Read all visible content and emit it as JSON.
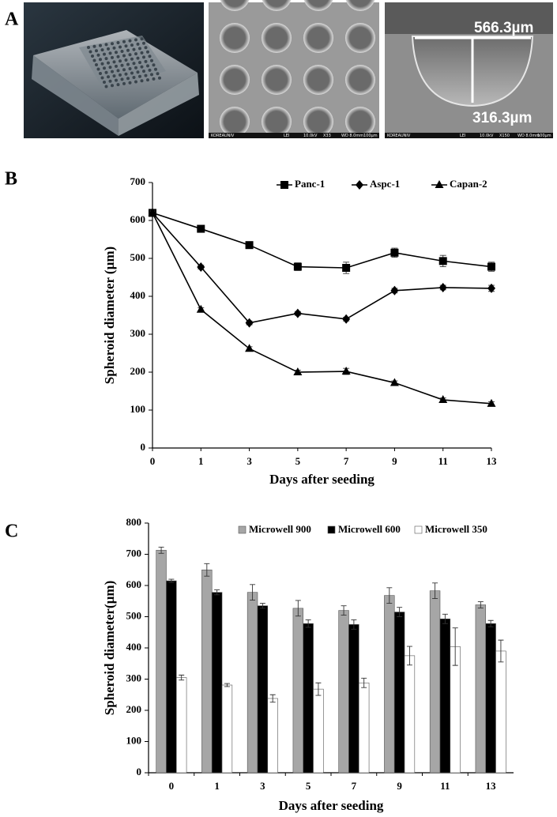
{
  "panel_labels": [
    "A",
    "B",
    "C"
  ],
  "panel_a": {
    "annotations": [
      "566.3µm",
      "316.3µm"
    ],
    "sem_captions": [
      [
        "KOREAUNIV",
        "LEI",
        "10.0kV",
        "X33",
        "WD 8.0mm",
        "100µm"
      ],
      [
        "KOREAUNIV",
        "LEI",
        "10.0kV",
        "X150",
        "WD 8.0mm",
        "100µm"
      ]
    ]
  },
  "chart_data": [
    {
      "type": "line",
      "x_label": "Days after seeding",
      "y_label": "Spheroid diameter (µm)",
      "categories": [
        "0",
        "1",
        "3",
        "5",
        "7",
        "9",
        "11",
        "13"
      ],
      "series": [
        {
          "name": "Panc-1",
          "color": "#000000",
          "marker": "square",
          "values": [
            620,
            578,
            535,
            478,
            475,
            515,
            493,
            478
          ],
          "errors": [
            5,
            6,
            6,
            10,
            15,
            12,
            15,
            12
          ]
        },
        {
          "name": "Aspc-1",
          "color": "#000000",
          "marker": "diamond",
          "values": [
            620,
            477,
            330,
            355,
            340,
            415,
            423,
            421
          ],
          "errors": [
            5,
            5,
            5,
            5,
            5,
            6,
            6,
            8
          ]
        },
        {
          "name": "Capan-2",
          "color": "#000000",
          "marker": "triangle",
          "values": [
            620,
            365,
            262,
            200,
            202,
            172,
            127,
            117
          ],
          "errors": [
            5,
            5,
            5,
            5,
            8,
            5,
            5,
            5
          ]
        }
      ],
      "ylim": [
        0,
        700
      ],
      "yticks": [
        0,
        100,
        200,
        300,
        400,
        500,
        600,
        700
      ],
      "grid": false,
      "legend": "top-right"
    },
    {
      "type": "bar",
      "x_label": "Days after seeding",
      "y_label": "Spheroid diameter(µm)",
      "categories": [
        "0",
        "1",
        "3",
        "5",
        "7",
        "9",
        "11",
        "13"
      ],
      "series": [
        {
          "name": "Microwell 900",
          "color": "#a6a6a6",
          "values": [
            713,
            650,
            578,
            527,
            520,
            568,
            583,
            538
          ],
          "errors": [
            10,
            20,
            25,
            25,
            15,
            25,
            25,
            10
          ]
        },
        {
          "name": "Microwell 600",
          "color": "#000000",
          "values": [
            615,
            578,
            535,
            478,
            475,
            515,
            493,
            478
          ],
          "errors": [
            5,
            8,
            8,
            12,
            15,
            15,
            15,
            10
          ]
        },
        {
          "name": "Microwell 350",
          "color": "#ffffff",
          "values": [
            305,
            281,
            238,
            268,
            288,
            375,
            404,
            390
          ],
          "errors": [
            8,
            5,
            12,
            20,
            15,
            30,
            60,
            35
          ]
        }
      ],
      "ylim": [
        0,
        800
      ],
      "yticks": [
        0,
        100,
        200,
        300,
        400,
        500,
        600,
        700,
        800
      ],
      "grid": false,
      "legend": "top-right"
    }
  ]
}
